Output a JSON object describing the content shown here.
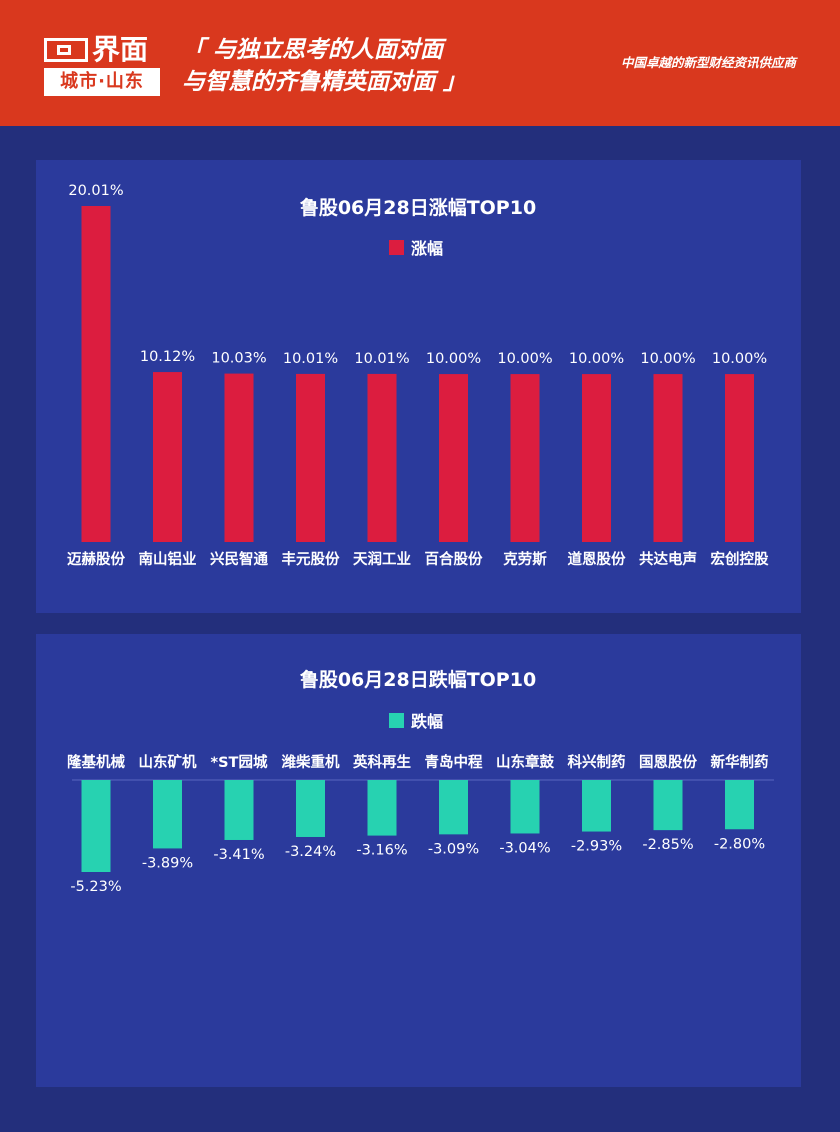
{
  "header": {
    "logo_brand": "界面",
    "logo_city": "城市·山东",
    "slogan_line1": "「 与独立思考的人面对面",
    "slogan_line2": "与智慧的齐鲁精英面对面 」",
    "tagline": "中国卓越的新型财经资讯供应商"
  },
  "colors": {
    "header_bg": "#d9381e",
    "page_bg": "#232f7c",
    "panel_bg": "#2b3a9c",
    "gain_bar": "#dc1d3f",
    "loss_bar": "#27d2b1"
  },
  "chart_data": [
    {
      "type": "bar",
      "title": "鲁股06月28日涨幅TOP10",
      "legend": "涨幅",
      "categories": [
        "迈赫股份",
        "南山铝业",
        "兴民智通",
        "丰元股份",
        "天润工业",
        "百合股份",
        "克劳斯",
        "道恩股份",
        "共达电声",
        "宏创控股"
      ],
      "values": [
        20.01,
        10.12,
        10.03,
        10.01,
        10.01,
        10.0,
        10.0,
        10.0,
        10.0,
        10.0
      ],
      "labels": [
        "20.01%",
        "10.12%",
        "10.03%",
        "10.01%",
        "10.01%",
        "10.00%",
        "10.00%",
        "10.00%",
        "10.00%",
        "10.00%"
      ],
      "ylim": [
        0,
        20.01
      ],
      "bar_color": "#dc1d3f"
    },
    {
      "type": "bar",
      "title": "鲁股06月28日跌幅TOP10",
      "legend": "跌幅",
      "categories": [
        "隆基机械",
        "山东矿机",
        "*ST园城",
        "潍柴重机",
        "英科再生",
        "青岛中程",
        "山东章鼓",
        "科兴制药",
        "国恩股份",
        "新华制药"
      ],
      "values": [
        -5.23,
        -3.89,
        -3.41,
        -3.24,
        -3.16,
        -3.09,
        -3.04,
        -2.93,
        -2.85,
        -2.8
      ],
      "labels": [
        "-5.23%",
        "-3.89%",
        "-3.41%",
        "-3.24%",
        "-3.16%",
        "-3.09%",
        "-3.04%",
        "-2.93%",
        "-2.85%",
        "-2.80%"
      ],
      "ylim": [
        -5.23,
        0
      ],
      "bar_color": "#27d2b1"
    }
  ]
}
